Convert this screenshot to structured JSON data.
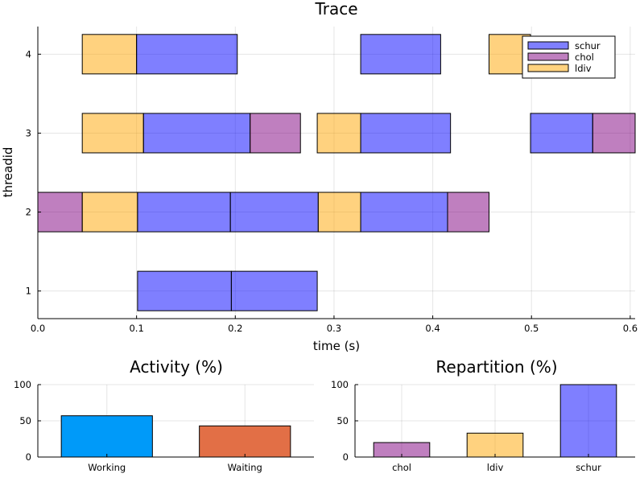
{
  "chart_data": [
    {
      "type": "gantt",
      "title": "Trace",
      "xlabel": "time (s)",
      "ylabel": "threadid",
      "xlim": [
        0,
        0.605
      ],
      "ylim": [
        0.65,
        4.35
      ],
      "xticks": [
        0,
        0.1,
        0.2,
        0.3,
        0.4,
        0.5,
        0.6
      ],
      "xtick_labels": [
        "0.0",
        "0.1",
        "0.2",
        "0.3",
        "0.4",
        "0.5",
        "0.6"
      ],
      "yticks": [
        1,
        2,
        3,
        4
      ],
      "ytick_labels": [
        "1",
        "2",
        "3",
        "4"
      ],
      "grid": true,
      "legend_position": "top-right",
      "legend": [
        {
          "name": "schur",
          "color": "#0000ff"
        },
        {
          "name": "chol",
          "color": "#800080"
        },
        {
          "name": "ldiv",
          "color": "#ffa500"
        }
      ],
      "tasks": [
        {
          "thread": 1,
          "start": 0.101,
          "end": 0.196,
          "kind": "schur"
        },
        {
          "thread": 1,
          "start": 0.196,
          "end": 0.283,
          "kind": "schur"
        },
        {
          "thread": 2,
          "start": 0.0,
          "end": 0.045,
          "kind": "chol"
        },
        {
          "thread": 2,
          "start": 0.045,
          "end": 0.101,
          "kind": "ldiv"
        },
        {
          "thread": 2,
          "start": 0.101,
          "end": 0.195,
          "kind": "schur"
        },
        {
          "thread": 2,
          "start": 0.195,
          "end": 0.284,
          "kind": "schur"
        },
        {
          "thread": 2,
          "start": 0.284,
          "end": 0.327,
          "kind": "ldiv"
        },
        {
          "thread": 2,
          "start": 0.327,
          "end": 0.415,
          "kind": "schur"
        },
        {
          "thread": 2,
          "start": 0.415,
          "end": 0.457,
          "kind": "chol"
        },
        {
          "thread": 3,
          "start": 0.045,
          "end": 0.107,
          "kind": "ldiv"
        },
        {
          "thread": 3,
          "start": 0.107,
          "end": 0.215,
          "kind": "schur"
        },
        {
          "thread": 3,
          "start": 0.215,
          "end": 0.266,
          "kind": "chol"
        },
        {
          "thread": 3,
          "start": 0.283,
          "end": 0.327,
          "kind": "ldiv"
        },
        {
          "thread": 3,
          "start": 0.327,
          "end": 0.418,
          "kind": "schur"
        },
        {
          "thread": 3,
          "start": 0.499,
          "end": 0.562,
          "kind": "schur"
        },
        {
          "thread": 3,
          "start": 0.562,
          "end": 0.605,
          "kind": "chol"
        },
        {
          "thread": 4,
          "start": 0.045,
          "end": 0.1,
          "kind": "ldiv"
        },
        {
          "thread": 4,
          "start": 0.1,
          "end": 0.202,
          "kind": "schur"
        },
        {
          "thread": 4,
          "start": 0.327,
          "end": 0.408,
          "kind": "schur"
        },
        {
          "thread": 4,
          "start": 0.457,
          "end": 0.499,
          "kind": "ldiv"
        }
      ]
    },
    {
      "type": "bar",
      "title": "Activity (%)",
      "categories": [
        "Working",
        "Waiting"
      ],
      "values": [
        57,
        43
      ],
      "colors": [
        "#009af9",
        "#e26f46"
      ],
      "ylim": [
        0,
        100
      ],
      "yticks": [
        0,
        50,
        100
      ],
      "ytick_labels": [
        "0",
        "50",
        "100"
      ],
      "grid": true
    },
    {
      "type": "bar",
      "title": "Repartition (%)",
      "categories": [
        "chol",
        "ldiv",
        "schur"
      ],
      "values": [
        20,
        33,
        100
      ],
      "colors": [
        "#800080",
        "#ffa500",
        "#0000ff"
      ],
      "ylim": [
        0,
        100
      ],
      "yticks": [
        0,
        50,
        100
      ],
      "ytick_labels": [
        "0",
        "50",
        "100"
      ],
      "grid": true
    }
  ]
}
